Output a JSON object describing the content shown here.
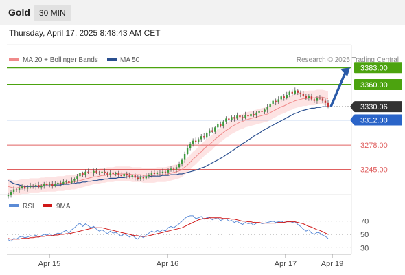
{
  "header": {
    "instrument": "Gold",
    "timeframe": "30 MIN"
  },
  "datetime": "Thursday, April 17, 2025 8:48:43 AM CET",
  "legend": {
    "ma20": "MA 20 + Bollinger Bands",
    "ma50": "MA 50",
    "credit": "Research © 2025 Trading Central",
    "rsi": "RSI",
    "ma9": "9MA"
  },
  "colors": {
    "green": "#4ca30f",
    "blue": "#2a64c8",
    "red_level": "#e06060",
    "current": "#333333",
    "bands": "#fcd9d9",
    "ma20": "#f08a8a",
    "ma50": "#2a4f8f",
    "rsi": "#5b8bd6",
    "ma9": "#d01818"
  },
  "chart_data": [
    {
      "type": "candlestick",
      "name": "price",
      "x_ticks": [
        "Apr 15",
        "Apr 16",
        "Apr 17",
        "Apr 19"
      ],
      "ylim": [
        3212,
        3400
      ],
      "levels": [
        {
          "value": 3383.0,
          "label": "3383.00",
          "kind": "target"
        },
        {
          "value": 3360.0,
          "label": "3360.00",
          "kind": "resistance"
        },
        {
          "value": 3330.06,
          "label": "3330.06",
          "kind": "current"
        },
        {
          "value": 3312.0,
          "label": "3312.00",
          "kind": "pivot"
        },
        {
          "value": 3278.0,
          "label": "3278.00",
          "kind": "support"
        },
        {
          "value": 3245.0,
          "label": "3245.00",
          "kind": "support"
        }
      ],
      "close": [
        3211,
        3214,
        3218,
        3217,
        3220,
        3222,
        3219,
        3221,
        3223,
        3222,
        3224,
        3221,
        3223,
        3225,
        3224,
        3226,
        3223,
        3225,
        3227,
        3226,
        3228,
        3229,
        3227,
        3230,
        3232,
        3236,
        3240,
        3238,
        3242,
        3241,
        3240,
        3243,
        3241,
        3240,
        3242,
        3240,
        3238,
        3241,
        3239,
        3240,
        3238,
        3236,
        3239,
        3237,
        3235,
        3237,
        3234,
        3232,
        3235,
        3233,
        3236,
        3238,
        3240,
        3239,
        3241,
        3240,
        3242,
        3241,
        3244,
        3246,
        3245,
        3248,
        3252,
        3258,
        3266,
        3274,
        3280,
        3284,
        3282,
        3286,
        3290,
        3288,
        3294,
        3298,
        3296,
        3302,
        3306,
        3304,
        3310,
        3314,
        3312,
        3316,
        3314,
        3318,
        3316,
        3315,
        3319,
        3317,
        3320,
        3318,
        3322,
        3324,
        3323,
        3326,
        3330,
        3334,
        3338,
        3336,
        3340,
        3344,
        3342,
        3346,
        3350,
        3348,
        3352,
        3349,
        3347,
        3345,
        3342,
        3344,
        3340,
        3338,
        3342,
        3341,
        3338,
        3335,
        3330
      ],
      "ma20": [
        3222,
        3221,
        3220,
        3220,
        3221,
        3222,
        3222,
        3222,
        3223,
        3223,
        3223,
        3223,
        3224,
        3224,
        3225,
        3225,
        3225,
        3225,
        3226,
        3226,
        3226,
        3227,
        3227,
        3228,
        3228,
        3229,
        3230,
        3231,
        3232,
        3233,
        3234,
        3235,
        3235,
        3236,
        3237,
        3237,
        3238,
        3238,
        3238,
        3239,
        3239,
        3239,
        3239,
        3239,
        3239,
        3238,
        3238,
        3238,
        3238,
        3237,
        3237,
        3237,
        3237,
        3237,
        3238,
        3238,
        3238,
        3238,
        3239,
        3240,
        3241,
        3242,
        3243,
        3245,
        3248,
        3251,
        3255,
        3259,
        3262,
        3266,
        3269,
        3273,
        3276,
        3279,
        3282,
        3286,
        3289,
        3292,
        3295,
        3298,
        3300,
        3303,
        3305,
        3307,
        3309,
        3310,
        3312,
        3313,
        3314,
        3315,
        3316,
        3317,
        3318,
        3319,
        3320,
        3322,
        3324,
        3326,
        3328,
        3330,
        3331,
        3333,
        3335,
        3336,
        3338,
        3339,
        3340,
        3341,
        3341,
        3342,
        3342,
        3342,
        3343,
        3343,
        3343,
        3342,
        3341
      ],
      "ma50": [
        3230,
        3228,
        3226,
        3225,
        3224,
        3223,
        3222,
        3222,
        3222,
        3222,
        3222,
        3222,
        3222,
        3223,
        3223,
        3223,
        3223,
        3224,
        3224,
        3224,
        3225,
        3225,
        3225,
        3226,
        3226,
        3227,
        3227,
        3228,
        3228,
        3229,
        3229,
        3230,
        3230,
        3231,
        3231,
        3232,
        3232,
        3233,
        3233,
        3233,
        3234,
        3234,
        3234,
        3235,
        3235,
        3235,
        3235,
        3235,
        3235,
        3235,
        3235,
        3235,
        3236,
        3236,
        3236,
        3236,
        3237,
        3237,
        3237,
        3238,
        3238,
        3238,
        3239,
        3239,
        3240,
        3241,
        3242,
        3243,
        3244,
        3245,
        3247,
        3248,
        3250,
        3252,
        3254,
        3256,
        3258,
        3260,
        3262,
        3265,
        3267,
        3270,
        3272,
        3275,
        3277,
        3280,
        3282,
        3285,
        3287,
        3290,
        3292,
        3294,
        3297,
        3299,
        3301,
        3303,
        3305,
        3307,
        3309,
        3311,
        3313,
        3315,
        3317,
        3319,
        3321,
        3322,
        3324,
        3325,
        3326,
        3327,
        3328,
        3328,
        3329,
        3329,
        3330,
        3330,
        3330
      ],
      "projection": {
        "from": 3330.06,
        "to": 3383.0
      }
    },
    {
      "type": "line",
      "name": "rsi_panel",
      "y_ticks": [
        70,
        50,
        30
      ],
      "ylim": [
        20,
        80
      ],
      "series": [
        {
          "name": "RSI",
          "values": [
            42,
            40,
            44,
            43,
            46,
            47,
            45,
            46,
            48,
            47,
            49,
            46,
            48,
            50,
            49,
            51,
            48,
            50,
            52,
            51,
            54,
            56,
            52,
            57,
            60,
            64,
            67,
            62,
            66,
            63,
            60,
            62,
            58,
            55,
            57,
            54,
            51,
            55,
            52,
            53,
            50,
            47,
            51,
            49,
            46,
            49,
            45,
            43,
            48,
            45,
            49,
            52,
            55,
            53,
            56,
            54,
            57,
            55,
            60,
            62,
            60,
            63,
            66,
            70,
            74,
            77,
            78,
            78,
            74,
            75,
            77,
            73,
            75,
            76,
            72,
            74,
            75,
            71,
            73,
            74,
            70,
            71,
            68,
            70,
            67,
            65,
            68,
            66,
            67,
            64,
            67,
            68,
            66,
            67,
            68,
            69,
            70,
            68,
            69,
            70,
            68,
            69,
            70,
            68,
            69,
            65,
            62,
            58,
            55,
            57,
            52,
            50,
            53,
            52,
            49,
            47,
            44
          ]
        },
        {
          "name": "9MA",
          "values": [
            44,
            43,
            43,
            43,
            43,
            44,
            44,
            44,
            45,
            45,
            46,
            46,
            47,
            47,
            48,
            48,
            48,
            49,
            49,
            50,
            50,
            51,
            51,
            52,
            53,
            54,
            55,
            56,
            57,
            58,
            59,
            60,
            60,
            60,
            60,
            59,
            58,
            57,
            56,
            55,
            54,
            53,
            52,
            51,
            50,
            49,
            48,
            48,
            47,
            47,
            47,
            48,
            49,
            50,
            51,
            52,
            53,
            54,
            55,
            56,
            57,
            58,
            59,
            60,
            62,
            64,
            66,
            68,
            70,
            72,
            73,
            74,
            74,
            75,
            75,
            75,
            75,
            75,
            74,
            74,
            74,
            73,
            73,
            72,
            71,
            70,
            70,
            69,
            69,
            68,
            68,
            68,
            67,
            67,
            67,
            67,
            67,
            67,
            68,
            68,
            68,
            69,
            69,
            69,
            69,
            68,
            67,
            66,
            64,
            62,
            61,
            59,
            57,
            56,
            54,
            52,
            50
          ]
        }
      ]
    }
  ]
}
